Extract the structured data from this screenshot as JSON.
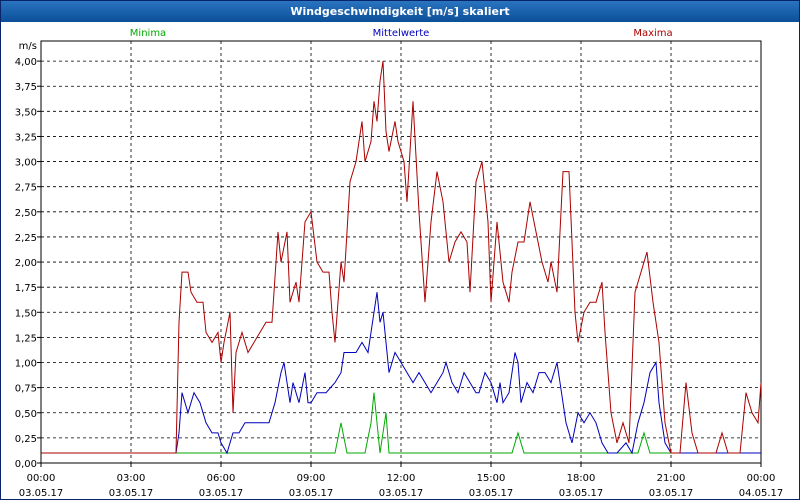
{
  "window": {
    "title": "Windgeschwindigkeit [m/s] skaliert"
  },
  "chart_data": {
    "type": "line",
    "title": "Windgeschwindigkeit [m/s] skaliert",
    "ylabel": "m/s",
    "ylim": [
      0,
      4.2
    ],
    "xlim": [
      0,
      24
    ],
    "grid": true,
    "legend_position": "top",
    "y_ticks": [
      "0,00",
      "0,25",
      "0,50",
      "0,75",
      "1,00",
      "1,25",
      "1,50",
      "1,75",
      "2,00",
      "2,25",
      "2,50",
      "2,75",
      "3,00",
      "3,25",
      "3,50",
      "3,75",
      "4,00"
    ],
    "x_ticks": [
      {
        "time": "00:00",
        "date": "03.05.17"
      },
      {
        "time": "03:00",
        "date": "03.05.17"
      },
      {
        "time": "06:00",
        "date": "03.05.17"
      },
      {
        "time": "09:00",
        "date": "03.05.17"
      },
      {
        "time": "12:00",
        "date": "03.05.17"
      },
      {
        "time": "15:00",
        "date": "03.05.17"
      },
      {
        "time": "18:00",
        "date": "03.05.17"
      },
      {
        "time": "21:00",
        "date": "03.05.17"
      },
      {
        "time": "00:00",
        "date": "04.05.17"
      }
    ],
    "series": [
      {
        "name": "Minima",
        "color": "#00aa00",
        "points": [
          [
            0,
            0.1
          ],
          [
            4.5,
            0.1
          ],
          [
            9.8,
            0.1
          ],
          [
            10.0,
            0.4
          ],
          [
            10.2,
            0.1
          ],
          [
            10.8,
            0.1
          ],
          [
            11.0,
            0.4
          ],
          [
            11.1,
            0.7
          ],
          [
            11.3,
            0.1
          ],
          [
            11.5,
            0.5
          ],
          [
            11.6,
            0.1
          ],
          [
            15.7,
            0.1
          ],
          [
            15.9,
            0.3
          ],
          [
            16.1,
            0.1
          ],
          [
            19.9,
            0.1
          ],
          [
            20.1,
            0.3
          ],
          [
            20.3,
            0.1
          ],
          [
            24.0,
            0.1
          ]
        ]
      },
      {
        "name": "Mittelwerte",
        "color": "#0000bb",
        "points": [
          [
            0,
            0.1
          ],
          [
            4.5,
            0.1
          ],
          [
            4.6,
            0.3
          ],
          [
            4.7,
            0.7
          ],
          [
            4.9,
            0.5
          ],
          [
            5.1,
            0.7
          ],
          [
            5.3,
            0.6
          ],
          [
            5.5,
            0.4
          ],
          [
            5.7,
            0.3
          ],
          [
            5.9,
            0.3
          ],
          [
            6.0,
            0.2
          ],
          [
            6.2,
            0.1
          ],
          [
            6.4,
            0.3
          ],
          [
            6.6,
            0.3
          ],
          [
            6.8,
            0.4
          ],
          [
            7.0,
            0.4
          ],
          [
            7.3,
            0.4
          ],
          [
            7.6,
            0.4
          ],
          [
            7.8,
            0.6
          ],
          [
            8.0,
            0.9
          ],
          [
            8.1,
            1.0
          ],
          [
            8.3,
            0.6
          ],
          [
            8.4,
            0.8
          ],
          [
            8.6,
            0.6
          ],
          [
            8.8,
            0.9
          ],
          [
            8.9,
            0.6
          ],
          [
            9.0,
            0.6
          ],
          [
            9.2,
            0.7
          ],
          [
            9.5,
            0.7
          ],
          [
            9.8,
            0.8
          ],
          [
            10.0,
            0.9
          ],
          [
            10.1,
            1.1
          ],
          [
            10.3,
            1.1
          ],
          [
            10.5,
            1.1
          ],
          [
            10.7,
            1.2
          ],
          [
            10.9,
            1.1
          ],
          [
            11.0,
            1.3
          ],
          [
            11.1,
            1.5
          ],
          [
            11.2,
            1.7
          ],
          [
            11.3,
            1.4
          ],
          [
            11.4,
            1.5
          ],
          [
            11.6,
            0.9
          ],
          [
            11.8,
            1.1
          ],
          [
            12.0,
            1.0
          ],
          [
            12.2,
            0.9
          ],
          [
            12.4,
            0.8
          ],
          [
            12.6,
            0.9
          ],
          [
            12.8,
            0.8
          ],
          [
            13.0,
            0.7
          ],
          [
            13.2,
            0.8
          ],
          [
            13.4,
            0.9
          ],
          [
            13.5,
            1.0
          ],
          [
            13.7,
            0.8
          ],
          [
            13.9,
            0.7
          ],
          [
            14.1,
            0.9
          ],
          [
            14.3,
            0.8
          ],
          [
            14.5,
            0.7
          ],
          [
            14.6,
            0.7
          ],
          [
            14.8,
            0.9
          ],
          [
            15.0,
            0.8
          ],
          [
            15.2,
            0.6
          ],
          [
            15.3,
            0.8
          ],
          [
            15.4,
            0.6
          ],
          [
            15.6,
            0.7
          ],
          [
            15.8,
            1.1
          ],
          [
            15.9,
            1.0
          ],
          [
            16.0,
            0.6
          ],
          [
            16.2,
            0.8
          ],
          [
            16.4,
            0.7
          ],
          [
            16.6,
            0.9
          ],
          [
            16.8,
            0.9
          ],
          [
            17.0,
            0.8
          ],
          [
            17.2,
            1.0
          ],
          [
            17.4,
            0.6
          ],
          [
            17.5,
            0.4
          ],
          [
            17.7,
            0.2
          ],
          [
            17.9,
            0.5
          ],
          [
            18.1,
            0.4
          ],
          [
            18.3,
            0.5
          ],
          [
            18.5,
            0.4
          ],
          [
            18.7,
            0.2
          ],
          [
            18.9,
            0.1
          ],
          [
            19.2,
            0.1
          ],
          [
            19.5,
            0.2
          ],
          [
            19.7,
            0.1
          ],
          [
            19.9,
            0.4
          ],
          [
            20.1,
            0.6
          ],
          [
            20.3,
            0.9
          ],
          [
            20.5,
            1.0
          ],
          [
            20.6,
            0.6
          ],
          [
            20.8,
            0.2
          ],
          [
            21.0,
            0.1
          ],
          [
            24.0,
            0.1
          ]
        ]
      },
      {
        "name": "Maxima",
        "color": "#aa0000",
        "points": [
          [
            0,
            0.1
          ],
          [
            4.5,
            0.1
          ],
          [
            4.6,
            1.4
          ],
          [
            4.7,
            1.9
          ],
          [
            4.9,
            1.9
          ],
          [
            5.0,
            1.7
          ],
          [
            5.2,
            1.6
          ],
          [
            5.4,
            1.6
          ],
          [
            5.5,
            1.3
          ],
          [
            5.7,
            1.2
          ],
          [
            5.9,
            1.3
          ],
          [
            6.0,
            1.0
          ],
          [
            6.1,
            1.2
          ],
          [
            6.3,
            1.5
          ],
          [
            6.4,
            0.5
          ],
          [
            6.5,
            1.1
          ],
          [
            6.7,
            1.3
          ],
          [
            6.9,
            1.1
          ],
          [
            7.1,
            1.2
          ],
          [
            7.3,
            1.3
          ],
          [
            7.5,
            1.4
          ],
          [
            7.7,
            1.4
          ],
          [
            7.9,
            2.3
          ],
          [
            8.0,
            2.0
          ],
          [
            8.2,
            2.3
          ],
          [
            8.3,
            1.6
          ],
          [
            8.5,
            1.8
          ],
          [
            8.6,
            1.6
          ],
          [
            8.8,
            2.4
          ],
          [
            9.0,
            2.5
          ],
          [
            9.2,
            2.0
          ],
          [
            9.4,
            1.9
          ],
          [
            9.6,
            1.9
          ],
          [
            9.7,
            1.5
          ],
          [
            9.8,
            1.2
          ],
          [
            10.0,
            2.0
          ],
          [
            10.1,
            1.8
          ],
          [
            10.3,
            2.8
          ],
          [
            10.5,
            3.0
          ],
          [
            10.7,
            3.4
          ],
          [
            10.8,
            3.0
          ],
          [
            11.0,
            3.2
          ],
          [
            11.1,
            3.6
          ],
          [
            11.2,
            3.4
          ],
          [
            11.3,
            3.8
          ],
          [
            11.4,
            4.0
          ],
          [
            11.5,
            3.3
          ],
          [
            11.6,
            3.1
          ],
          [
            11.8,
            3.4
          ],
          [
            11.9,
            3.2
          ],
          [
            12.1,
            3.0
          ],
          [
            12.2,
            2.6
          ],
          [
            12.4,
            3.6
          ],
          [
            12.6,
            2.5
          ],
          [
            12.8,
            1.6
          ],
          [
            13.0,
            2.4
          ],
          [
            13.2,
            2.9
          ],
          [
            13.4,
            2.6
          ],
          [
            13.6,
            2.0
          ],
          [
            13.8,
            2.2
          ],
          [
            14.0,
            2.3
          ],
          [
            14.2,
            2.2
          ],
          [
            14.3,
            1.7
          ],
          [
            14.5,
            2.8
          ],
          [
            14.7,
            3.0
          ],
          [
            14.9,
            2.4
          ],
          [
            15.0,
            1.6
          ],
          [
            15.2,
            2.4
          ],
          [
            15.4,
            1.8
          ],
          [
            15.6,
            1.6
          ],
          [
            15.7,
            1.9
          ],
          [
            15.9,
            2.2
          ],
          [
            16.1,
            2.2
          ],
          [
            16.3,
            2.6
          ],
          [
            16.5,
            2.3
          ],
          [
            16.7,
            2.0
          ],
          [
            16.9,
            1.8
          ],
          [
            17.0,
            2.0
          ],
          [
            17.2,
            1.7
          ],
          [
            17.4,
            2.9
          ],
          [
            17.6,
            2.9
          ],
          [
            17.8,
            1.5
          ],
          [
            17.9,
            1.2
          ],
          [
            18.1,
            1.5
          ],
          [
            18.3,
            1.6
          ],
          [
            18.5,
            1.6
          ],
          [
            18.7,
            1.8
          ],
          [
            18.8,
            1.3
          ],
          [
            19.0,
            0.5
          ],
          [
            19.2,
            0.2
          ],
          [
            19.4,
            0.4
          ],
          [
            19.6,
            0.2
          ],
          [
            19.8,
            1.7
          ],
          [
            20.0,
            1.9
          ],
          [
            20.2,
            2.1
          ],
          [
            20.4,
            1.6
          ],
          [
            20.6,
            1.2
          ],
          [
            20.8,
            0.4
          ],
          [
            21.0,
            0.1
          ],
          [
            21.3,
            0.1
          ],
          [
            21.5,
            0.8
          ],
          [
            21.7,
            0.3
          ],
          [
            21.9,
            0.1
          ],
          [
            22.5,
            0.1
          ],
          [
            22.7,
            0.3
          ],
          [
            22.9,
            0.1
          ],
          [
            23.3,
            0.1
          ],
          [
            23.5,
            0.7
          ],
          [
            23.7,
            0.5
          ],
          [
            23.9,
            0.4
          ],
          [
            24.0,
            0.8
          ]
        ]
      }
    ]
  }
}
